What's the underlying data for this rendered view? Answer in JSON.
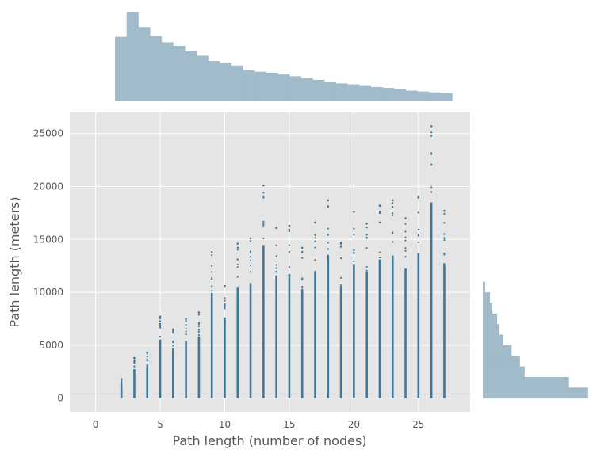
{
  "chart_data": {
    "type": "scatter",
    "title": "",
    "xlabel": "Path length (number of nodes)",
    "ylabel": "Path length (meters)",
    "xlim": [
      -2,
      29
    ],
    "ylim": [
      -1300,
      27000
    ],
    "xticks": [
      0,
      5,
      10,
      15,
      20,
      25
    ],
    "yticks": [
      0,
      5000,
      10000,
      15000,
      20000,
      25000
    ],
    "grid": true,
    "marker_color": "#3e7898",
    "histogram_color": "#a1bbcb",
    "columns": [
      {
        "x": 2,
        "min": 0,
        "max": 1800
      },
      {
        "x": 3,
        "min": 0,
        "max": 3800
      },
      {
        "x": 4,
        "min": 0,
        "max": 4300
      },
      {
        "x": 5,
        "min": 0,
        "max": 7700
      },
      {
        "x": 6,
        "min": 0,
        "max": 6500
      },
      {
        "x": 7,
        "min": 0,
        "max": 7500
      },
      {
        "x": 8,
        "min": 0,
        "max": 8100
      },
      {
        "x": 9,
        "min": 0,
        "max": 13800
      },
      {
        "x": 10,
        "min": 0,
        "max": 10600
      },
      {
        "x": 11,
        "min": 0,
        "max": 14600
      },
      {
        "x": 12,
        "min": 0,
        "max": 15100
      },
      {
        "x": 13,
        "min": 0,
        "max": 20100
      },
      {
        "x": 14,
        "min": 0,
        "max": 16100
      },
      {
        "x": 15,
        "min": 0,
        "max": 16300
      },
      {
        "x": 16,
        "min": 0,
        "max": 14200
      },
      {
        "x": 17,
        "min": 0,
        "max": 16600
      },
      {
        "x": 18,
        "min": 0,
        "max": 18700
      },
      {
        "x": 19,
        "min": 0,
        "max": 14700
      },
      {
        "x": 20,
        "min": 0,
        "max": 17600
      },
      {
        "x": 21,
        "min": 0,
        "max": 16500
      },
      {
        "x": 22,
        "min": 0,
        "max": 18200
      },
      {
        "x": 23,
        "min": 0,
        "max": 18700
      },
      {
        "x": 24,
        "min": 0,
        "max": 17000
      },
      {
        "x": 25,
        "min": 0,
        "max": 19000
      },
      {
        "x": 26,
        "min": 0,
        "max": 25700
      },
      {
        "x": 27,
        "min": 0,
        "max": 17700
      }
    ],
    "x_histogram": {
      "bin_start": 1.5,
      "bin_width": 1,
      "relative_heights": [
        0.72,
        1.0,
        0.83,
        0.73,
        0.66,
        0.62,
        0.56,
        0.51,
        0.45,
        0.43,
        0.4,
        0.35,
        0.33,
        0.32,
        0.3,
        0.28,
        0.26,
        0.24,
        0.22,
        0.2,
        0.19,
        0.18,
        0.16,
        0.15,
        0.14,
        0.12,
        0.11,
        0.1,
        0.09
      ]
    },
    "y_histogram": {
      "bin_start": 0,
      "bin_width": 1000,
      "relative_widths": [
        0.88,
        0.72,
        0.35,
        0.31,
        0.24,
        0.17,
        0.14,
        0.12,
        0.08,
        0.06,
        0.02
      ]
    }
  }
}
